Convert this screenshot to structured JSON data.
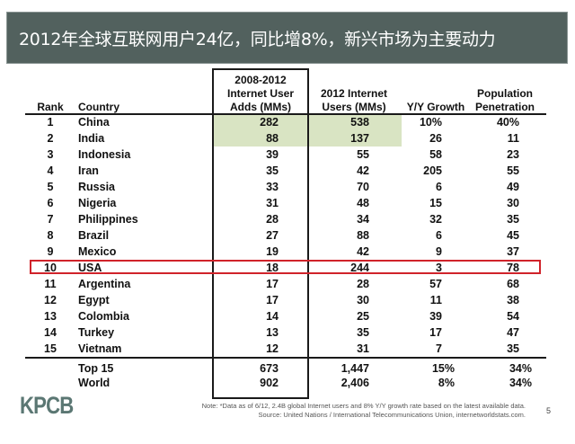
{
  "title": "2012年全球互联网用户24亿，同比增8%，新兴市场为主要动力",
  "table": {
    "headers": {
      "rank": "Rank",
      "country": "Country",
      "adds": [
        "2008-2012",
        "Internet User",
        "Adds (MMs)"
      ],
      "users": [
        "2012 Internet",
        "Users (MMs)"
      ],
      "growth": "Y/Y Growth",
      "penetration": [
        "Population",
        "Penetration"
      ]
    },
    "rows": [
      {
        "rank": "1",
        "country": "China",
        "adds": "282",
        "users": "538",
        "growth": "10%",
        "penetration": "40%"
      },
      {
        "rank": "2",
        "country": "India",
        "adds": "88",
        "users": "137",
        "growth": "26",
        "penetration": "11"
      },
      {
        "rank": "3",
        "country": "Indonesia",
        "adds": "39",
        "users": "55",
        "growth": "58",
        "penetration": "23"
      },
      {
        "rank": "4",
        "country": "Iran",
        "adds": "35",
        "users": "42",
        "growth": "205",
        "penetration": "55"
      },
      {
        "rank": "5",
        "country": "Russia",
        "adds": "33",
        "users": "70",
        "growth": "6",
        "penetration": "49"
      },
      {
        "rank": "6",
        "country": "Nigeria",
        "adds": "31",
        "users": "48",
        "growth": "15",
        "penetration": "30"
      },
      {
        "rank": "7",
        "country": "Philippines",
        "adds": "28",
        "users": "34",
        "growth": "32",
        "penetration": "35"
      },
      {
        "rank": "8",
        "country": "Brazil",
        "adds": "27",
        "users": "88",
        "growth": "6",
        "penetration": "45"
      },
      {
        "rank": "9",
        "country": "Mexico",
        "adds": "19",
        "users": "42",
        "growth": "9",
        "penetration": "37"
      },
      {
        "rank": "10",
        "country": "USA",
        "adds": "18",
        "users": "244",
        "growth": "3",
        "penetration": "78"
      },
      {
        "rank": "11",
        "country": "Argentina",
        "adds": "17",
        "users": "28",
        "growth": "57",
        "penetration": "68"
      },
      {
        "rank": "12",
        "country": "Egypt",
        "adds": "17",
        "users": "30",
        "growth": "11",
        "penetration": "38"
      },
      {
        "rank": "13",
        "country": "Colombia",
        "adds": "14",
        "users": "25",
        "growth": "39",
        "penetration": "54"
      },
      {
        "rank": "14",
        "country": "Turkey",
        "adds": "13",
        "users": "35",
        "growth": "17",
        "penetration": "47"
      },
      {
        "rank": "15",
        "country": "Vietnam",
        "adds": "12",
        "users": "31",
        "growth": "7",
        "penetration": "35"
      }
    ],
    "totals": [
      {
        "label": "Top 15",
        "adds": "673",
        "users": "1,447",
        "growth": "15%",
        "penetration": "34%"
      },
      {
        "label": "World",
        "adds": "902",
        "users": "2,406",
        "growth": "8%",
        "penetration": "34%"
      }
    ]
  },
  "highlight": {
    "color": "#d0232a",
    "row": "USA",
    "green": "#d9e4c3",
    "title_bg": "#52615e"
  },
  "footer": {
    "logo": "KPCB",
    "note": "Note: *Data as of 6/12, 2.4B global Internet users and 8% Y/Y growth rate based on the latest available data.",
    "source": "Source: United Nations / International Telecommunications Union, internetworldstats.com.",
    "page": "5"
  }
}
